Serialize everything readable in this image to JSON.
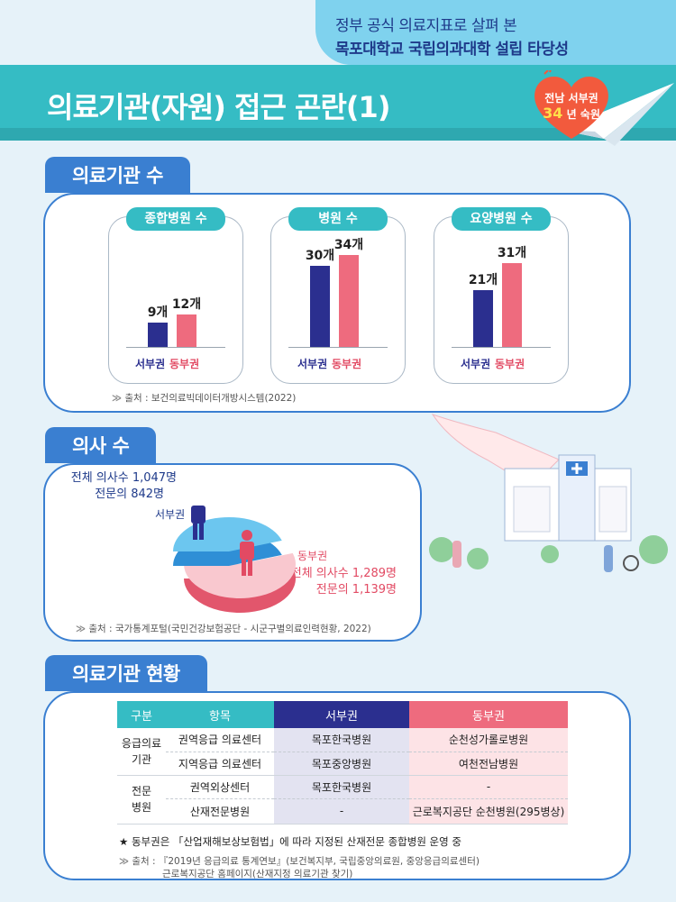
{
  "header": {
    "subtitle_line1": "정부 공식 의료지표로 살펴 본",
    "subtitle_line2": "목포대학교 국립의과대학 설립 타당성",
    "title": "의료기관(자원) 접근 곤란(1)",
    "heart_line1": "전남 서부권",
    "heart_num": "34",
    "heart_line2": "년 숙원"
  },
  "sections": {
    "facilities": "의료기관 수",
    "doctors": "의사 수",
    "status": "의료기관 현황"
  },
  "legend": {
    "west": "서부권",
    "east": "동부권"
  },
  "colors": {
    "west": "#2b2f8f",
    "east": "#ee6b7e",
    "accent": "#35bcc4",
    "section": "#3a7fd1"
  },
  "chart_data": [
    {
      "type": "bar",
      "title": "종합병원 수",
      "categories": [
        "서부권",
        "동부권"
      ],
      "values": [
        9,
        12
      ],
      "labels": [
        "9개",
        "12개"
      ]
    },
    {
      "type": "bar",
      "title": "병원 수",
      "categories": [
        "서부권",
        "동부권"
      ],
      "values": [
        30,
        34
      ],
      "labels": [
        "30개",
        "34개"
      ]
    },
    {
      "type": "bar",
      "title": "요양병원 수",
      "categories": [
        "서부권",
        "동부권"
      ],
      "values": [
        21,
        31
      ],
      "labels": [
        "21개",
        "31개"
      ]
    },
    {
      "type": "pie",
      "title": "의사 수",
      "categories": [
        "서부권",
        "동부권"
      ],
      "values": [
        1047,
        1289
      ]
    }
  ],
  "facilities_source": "출처 : 보건의료빅데이터개방시스템(2022)",
  "doctors": {
    "west_total": "전체 의사수 1,047명",
    "west_specialist": "전문의 842명",
    "west_label": "서부권",
    "east_label": "동부권",
    "east_total": "전체 의사수 1,289명",
    "east_specialist": "전문의 1,139명",
    "source": "출처 : 국가통계포털(국민건강보험공단 - 시군구별의료인력현황, 2022)"
  },
  "table": {
    "headers": [
      "구분",
      "항목",
      "서부권",
      "동부권"
    ],
    "group1": "응급의료\n기관",
    "group1_a": "응급의료",
    "group1_b": "기관",
    "group2_a": "전문",
    "group2_b": "병원",
    "rows": [
      {
        "item": "권역응급 의료센터",
        "west": "목포한국병원",
        "east": "순천성가롤로병원"
      },
      {
        "item": "지역응급 의료센터",
        "west": "목포중앙병원",
        "east": "여천전남병원"
      },
      {
        "item": "권역외상센터",
        "west": "목포한국병원",
        "east": "-"
      },
      {
        "item": "산재전문병원",
        "west": "-",
        "east": "근로복지공단 순천병원(295병상)"
      }
    ],
    "footnote": "동부권은 「산업재해보상보험법」에 따라 지정된 산재전문 종합병원 운영 중",
    "source_line1": "출처 : 『2019년 응급의료 통계연보』(보건복지부, 국립중앙의료원, 중앙응급의료센터)",
    "source_line2": "근로복지공단 홈페이지(산재지정 의료기관 찾기)"
  }
}
